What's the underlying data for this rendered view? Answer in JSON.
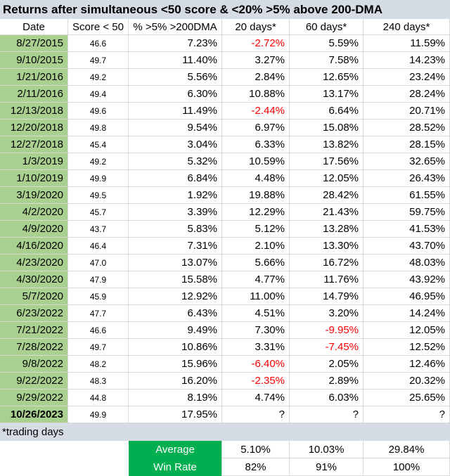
{
  "title": "Returns after simultaneous <50 score & <20% >5% above 200-DMA",
  "table": {
    "columns": [
      "Date",
      "Score < 50",
      "% >5% >200DMA",
      "20 days*",
      "60 days*",
      "240 days*"
    ],
    "rows": [
      [
        "8/27/2015",
        "46.6",
        "7.23%",
        "-2.72%",
        "5.59%",
        "11.59%"
      ],
      [
        "9/10/2015",
        "49.7",
        "11.40%",
        "3.27%",
        "7.58%",
        "14.23%"
      ],
      [
        "1/21/2016",
        "49.2",
        "5.56%",
        "2.84%",
        "12.65%",
        "23.24%"
      ],
      [
        "2/11/2016",
        "49.4",
        "6.30%",
        "10.88%",
        "13.17%",
        "28.24%"
      ],
      [
        "12/13/2018",
        "49.6",
        "11.49%",
        "-2.44%",
        "6.64%",
        "20.71%"
      ],
      [
        "12/20/2018",
        "49.8",
        "9.54%",
        "6.97%",
        "15.08%",
        "28.52%"
      ],
      [
        "12/27/2018",
        "45.4",
        "3.04%",
        "6.33%",
        "13.82%",
        "28.15%"
      ],
      [
        "1/3/2019",
        "49.2",
        "5.32%",
        "10.59%",
        "17.56%",
        "32.65%"
      ],
      [
        "1/10/2019",
        "49.9",
        "6.84%",
        "4.48%",
        "12.05%",
        "26.43%"
      ],
      [
        "3/19/2020",
        "49.5",
        "1.92%",
        "19.88%",
        "28.42%",
        "61.55%"
      ],
      [
        "4/2/2020",
        "45.7",
        "3.39%",
        "12.29%",
        "21.43%",
        "59.75%"
      ],
      [
        "4/9/2020",
        "43.7",
        "5.83%",
        "5.12%",
        "13.28%",
        "41.53%"
      ],
      [
        "4/16/2020",
        "46.4",
        "7.31%",
        "2.10%",
        "13.30%",
        "43.70%"
      ],
      [
        "4/23/2020",
        "47.0",
        "13.07%",
        "5.66%",
        "16.72%",
        "48.03%"
      ],
      [
        "4/30/2020",
        "47.9",
        "15.58%",
        "4.77%",
        "11.76%",
        "43.92%"
      ],
      [
        "5/7/2020",
        "45.9",
        "12.92%",
        "11.00%",
        "14.79%",
        "46.95%"
      ],
      [
        "6/23/2022",
        "47.7",
        "6.43%",
        "4.51%",
        "3.20%",
        "14.24%"
      ],
      [
        "7/21/2022",
        "46.6",
        "9.49%",
        "7.30%",
        "-9.95%",
        "12.05%"
      ],
      [
        "7/28/2022",
        "49.7",
        "10.86%",
        "3.31%",
        "-7.45%",
        "12.52%"
      ],
      [
        "9/8/2022",
        "48.2",
        "15.96%",
        "-6.40%",
        "2.05%",
        "12.46%"
      ],
      [
        "9/22/2022",
        "48.3",
        "16.20%",
        "-2.35%",
        "2.89%",
        "20.32%"
      ],
      [
        "9/29/2022",
        "44.8",
        "8.19%",
        "4.74%",
        "6.03%",
        "25.65%"
      ],
      [
        "10/26/2023",
        "49.9",
        "17.95%",
        "?",
        "?",
        "?"
      ]
    ],
    "footnote": "*trading days",
    "summary": [
      [
        "Average",
        "5.10%",
        "10.03%",
        "29.84%"
      ],
      [
        "Win Rate",
        "82%",
        "91%",
        "100%"
      ]
    ]
  }
}
